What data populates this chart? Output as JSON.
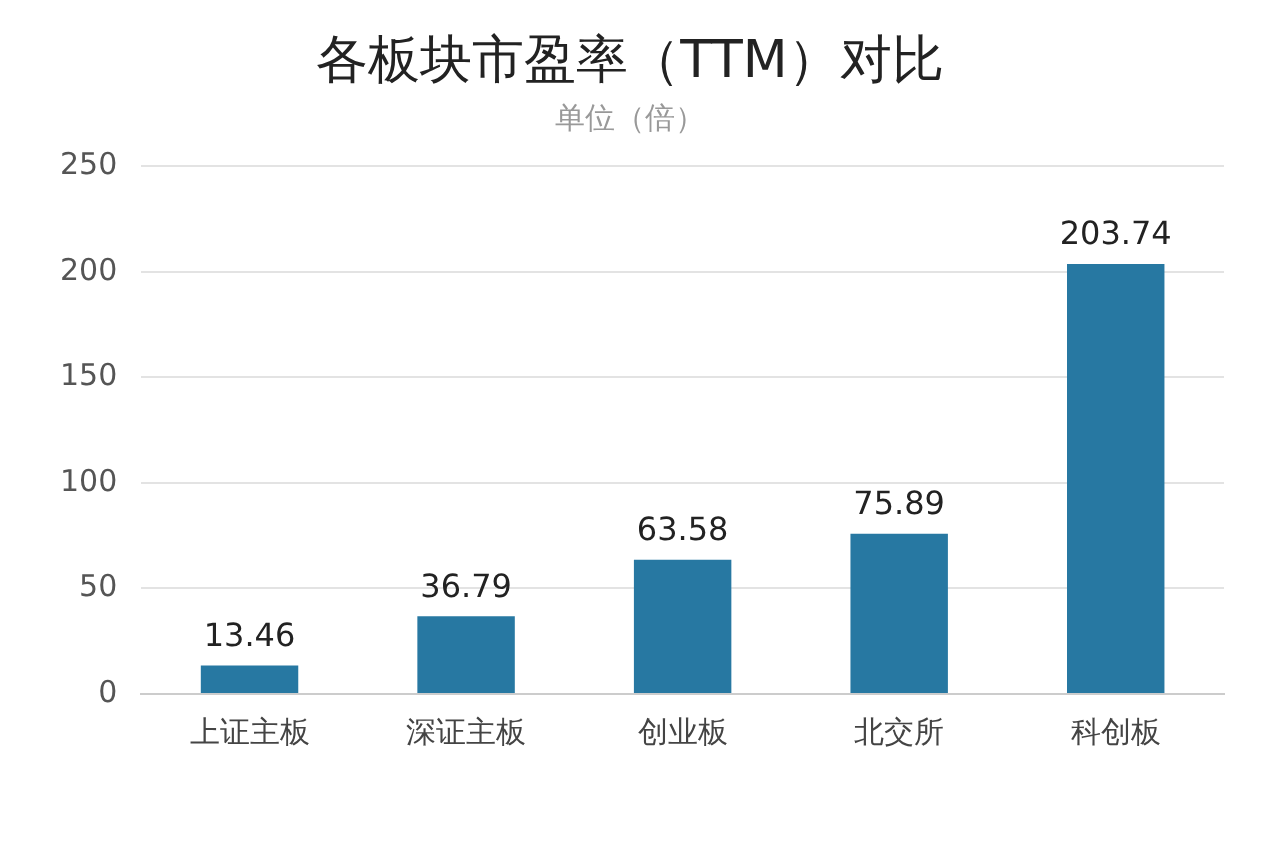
{
  "chart_data": {
    "type": "bar",
    "title": "各板块市盈率（TTM）对比",
    "subtitle": "单位（倍）",
    "categories": [
      "上证主板",
      "深证主板",
      "创业板",
      "北交所",
      "科创板"
    ],
    "values": [
      13.46,
      36.79,
      63.58,
      75.89,
      203.74
    ],
    "color": "#2778a2",
    "ylim": [
      0,
      250
    ],
    "yticks": [
      0,
      50,
      100,
      150,
      200,
      250
    ],
    "grid": "y",
    "data_labels": true
  }
}
